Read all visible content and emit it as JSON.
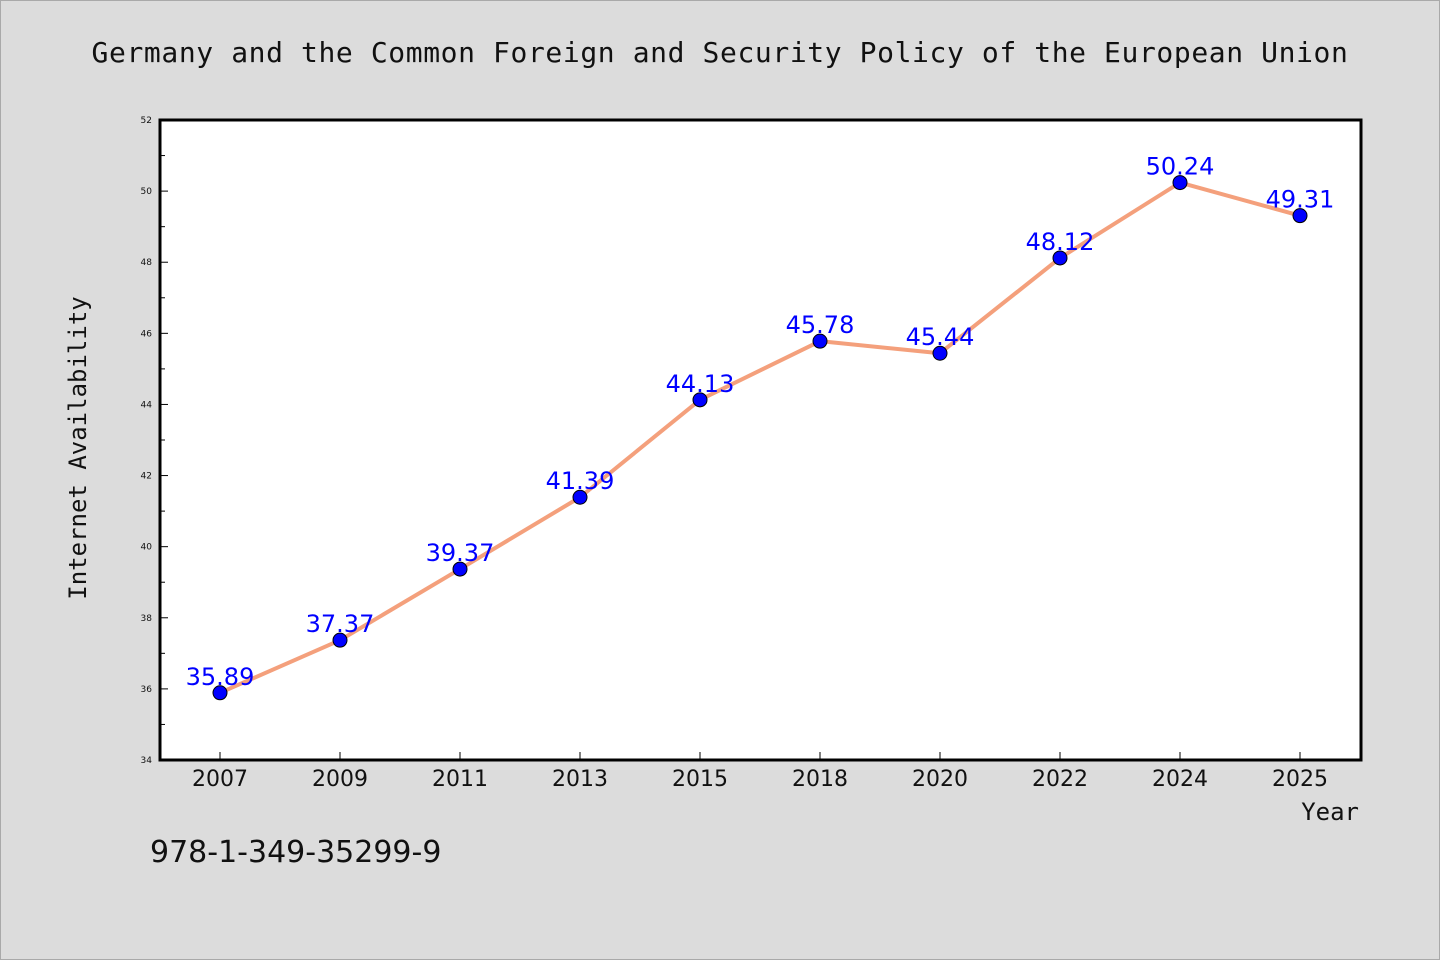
{
  "chart_data": {
    "type": "line",
    "title": "Germany and the Common Foreign and Security Policy of the European Union",
    "xlabel": "Year",
    "ylabel": "Internet Availability",
    "categories": [
      "2007",
      "2009",
      "2011",
      "2013",
      "2015",
      "2018",
      "2020",
      "2022",
      "2024",
      "2025"
    ],
    "series": [
      {
        "values": [
          35.89,
          37.37,
          39.37,
          41.39,
          44.13,
          45.78,
          45.44,
          48.12,
          50.24,
          49.31
        ],
        "labels": [
          "35.89",
          "37.37",
          "39.37",
          "41.39",
          "44.13",
          "45.78",
          "45.44",
          "48.12",
          "50.24",
          "49.31"
        ]
      }
    ],
    "ylim": [
      34,
      52
    ],
    "yticks": [
      "34",
      "36",
      "38",
      "40",
      "42",
      "44",
      "46",
      "48",
      "50",
      "52"
    ],
    "grid": false,
    "legend": "none",
    "colors": {
      "line": "#f4a07c",
      "marker": "#0000ff",
      "data_label": "#0000ff",
      "background": "#dcdcdc",
      "plot_area": "#ffffff"
    }
  },
  "footer_code": "978-1-349-35299-9"
}
